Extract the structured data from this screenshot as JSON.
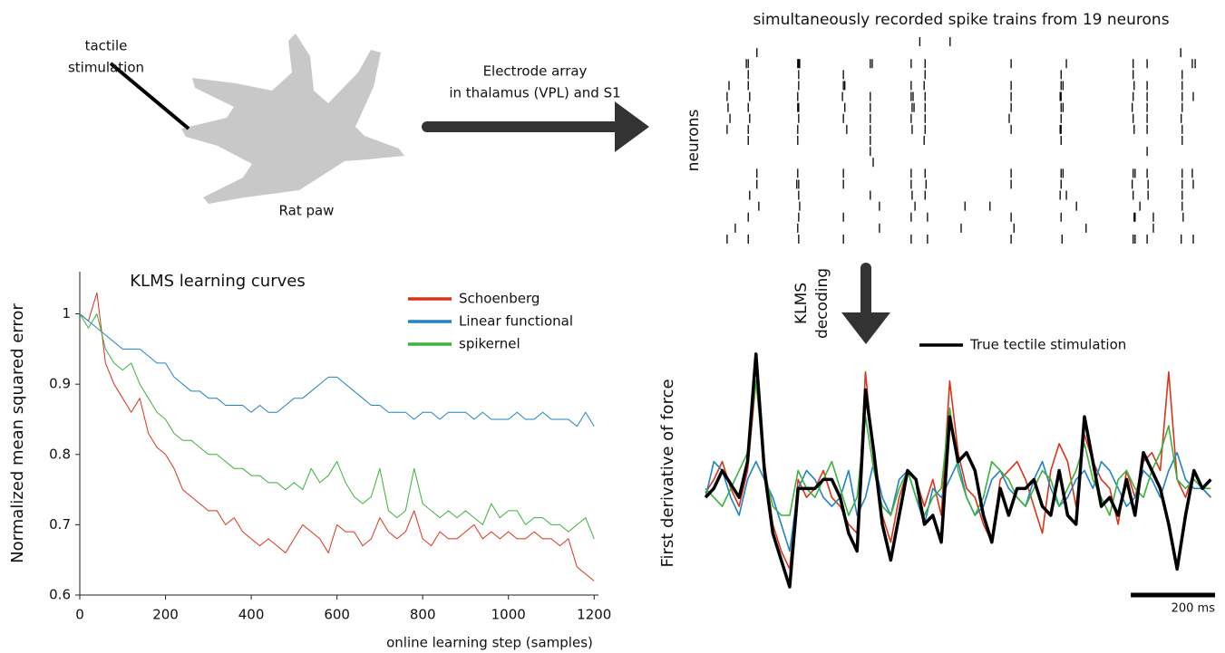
{
  "tactile_stimulation": [
    "tactile",
    "stimulation"
  ],
  "paw_label": "Rat paw",
  "electrode_label": [
    "Electrode array",
    "in thalamus (VPL) and S1"
  ],
  "decoding_label": [
    "KLMS",
    "decoding"
  ],
  "chart_data": [
    {
      "type": "raster",
      "title": "simultaneously recorded spike trains from 19 neurons",
      "ylabel": "neurons",
      "xlim": [
        0,
        1000
      ],
      "color": "#000000",
      "spike_times": [
        [
          414,
          477
        ],
        [
          75,
          957
        ],
        [
          53,
          57,
          160,
          162,
          164,
          311,
          315,
          396,
          425,
          604,
          719,
          858,
          887,
          981,
          987
        ],
        [
          57,
          162,
          255,
          425,
          708,
          858,
          960
        ],
        [
          17,
          57,
          162,
          255,
          258,
          396,
          423,
          604,
          708,
          712,
          860,
          887,
          960
        ],
        [
          13,
          60,
          160,
          253,
          311,
          396,
          400,
          425,
          604,
          706,
          708,
          858,
          887,
          960,
          983
        ],
        [
          15,
          57,
          160,
          162,
          258,
          311,
          398,
          402,
          425,
          604,
          708,
          712,
          856,
          887,
          960
        ],
        [
          19,
          60,
          162,
          255,
          311,
          396,
          425,
          600,
          708,
          858,
          887,
          958
        ],
        [
          13,
          57,
          160,
          262,
          311,
          398,
          425,
          604,
          706,
          708,
          860,
          887,
          960
        ],
        [
          57,
          160,
          311,
          423,
          708,
          960
        ],
        [
          311,
          887
        ],
        [
          317
        ],
        [
          75,
          160,
          255,
          396,
          425,
          604,
          708,
          712,
          858,
          862,
          887,
          960,
          981
        ],
        [
          75,
          158,
          162,
          255,
          396,
          427,
          604,
          708,
          856,
          889,
          960,
          983
        ],
        [
          60,
          162,
          311,
          398,
          425,
          706,
          719,
          858,
          889,
          960
        ],
        [
          79,
          164,
          330,
          404,
          508,
          560,
          740,
          872,
          960
        ],
        [
          57,
          162,
          255,
          396,
          430,
          604,
          708,
          860,
          862,
          900,
          962
        ],
        [
          30,
          160,
          330,
          500,
          610,
          760,
          900
        ],
        [
          13,
          57,
          162,
          255,
          396,
          430,
          604,
          710,
          858,
          862,
          887,
          958,
          983
        ]
      ]
    },
    {
      "type": "line",
      "title": "KLMS learning curves",
      "xlabel": "online learning step (samples)",
      "ylabel": "Normalized mean squared error",
      "axes": true,
      "legend": "upper right",
      "xlim": [
        0,
        1210
      ],
      "ylim": [
        0.6,
        1.06
      ],
      "xticks": [
        0,
        200,
        400,
        600,
        800,
        1000,
        1200
      ],
      "yticks": [
        0.6,
        0.7,
        0.8,
        0.9,
        1
      ],
      "x": [
        0,
        20,
        40,
        60,
        80,
        100,
        120,
        140,
        160,
        180,
        200,
        220,
        240,
        260,
        280,
        300,
        320,
        340,
        360,
        380,
        400,
        420,
        440,
        460,
        480,
        500,
        520,
        540,
        560,
        580,
        600,
        620,
        640,
        660,
        680,
        700,
        720,
        740,
        760,
        780,
        800,
        820,
        840,
        860,
        880,
        900,
        920,
        940,
        960,
        980,
        1000,
        1020,
        1040,
        1060,
        1080,
        1100,
        1120,
        1140,
        1160,
        1180,
        1200
      ],
      "series": [
        {
          "name": "Schoenberg",
          "color": "#d9341a",
          "width": 1,
          "values": [
            1.0,
            0.99,
            1.03,
            0.93,
            0.9,
            0.88,
            0.86,
            0.88,
            0.83,
            0.81,
            0.8,
            0.78,
            0.75,
            0.74,
            0.73,
            0.72,
            0.72,
            0.7,
            0.71,
            0.69,
            0.68,
            0.67,
            0.68,
            0.67,
            0.66,
            0.68,
            0.7,
            0.69,
            0.68,
            0.66,
            0.7,
            0.69,
            0.69,
            0.67,
            0.68,
            0.71,
            0.69,
            0.68,
            0.69,
            0.72,
            0.68,
            0.67,
            0.69,
            0.68,
            0.68,
            0.69,
            0.7,
            0.68,
            0.69,
            0.68,
            0.69,
            0.68,
            0.68,
            0.69,
            0.68,
            0.68,
            0.67,
            0.68,
            0.64,
            0.63,
            0.62
          ]
        },
        {
          "name": "Linear functional",
          "color": "#1f83c6",
          "width": 1,
          "values": [
            1.0,
            0.99,
            0.98,
            0.97,
            0.96,
            0.95,
            0.95,
            0.95,
            0.94,
            0.93,
            0.93,
            0.91,
            0.9,
            0.89,
            0.89,
            0.88,
            0.88,
            0.87,
            0.87,
            0.87,
            0.86,
            0.87,
            0.86,
            0.86,
            0.87,
            0.88,
            0.88,
            0.89,
            0.9,
            0.91,
            0.91,
            0.9,
            0.89,
            0.88,
            0.87,
            0.87,
            0.86,
            0.86,
            0.86,
            0.85,
            0.86,
            0.86,
            0.85,
            0.86,
            0.86,
            0.86,
            0.85,
            0.86,
            0.85,
            0.85,
            0.85,
            0.86,
            0.85,
            0.85,
            0.86,
            0.85,
            0.85,
            0.85,
            0.84,
            0.86,
            0.84
          ]
        },
        {
          "name": "spikernel",
          "color": "#3bb23b",
          "width": 1,
          "values": [
            1.0,
            0.98,
            1.0,
            0.95,
            0.93,
            0.92,
            0.93,
            0.9,
            0.88,
            0.86,
            0.85,
            0.83,
            0.82,
            0.82,
            0.81,
            0.8,
            0.8,
            0.79,
            0.78,
            0.78,
            0.77,
            0.77,
            0.76,
            0.76,
            0.75,
            0.76,
            0.75,
            0.78,
            0.76,
            0.77,
            0.79,
            0.76,
            0.74,
            0.73,
            0.74,
            0.78,
            0.72,
            0.71,
            0.72,
            0.78,
            0.73,
            0.72,
            0.71,
            0.72,
            0.71,
            0.72,
            0.71,
            0.7,
            0.73,
            0.71,
            0.72,
            0.72,
            0.7,
            0.71,
            0.71,
            0.7,
            0.7,
            0.69,
            0.7,
            0.71,
            0.68
          ]
        }
      ]
    },
    {
      "type": "line",
      "ylabel": "First derivative of force",
      "axes": false,
      "legend": "upper center",
      "xlim": [
        0,
        1210
      ],
      "ylim": [
        -1.12,
        1.66
      ],
      "scale_bar": {
        "value": 200,
        "label": "200 ms"
      },
      "x": [
        0,
        20,
        40,
        60,
        80,
        100,
        120,
        140,
        160,
        180,
        200,
        220,
        240,
        260,
        280,
        300,
        320,
        340,
        360,
        380,
        400,
        420,
        440,
        460,
        480,
        500,
        520,
        540,
        560,
        580,
        600,
        620,
        640,
        660,
        680,
        700,
        720,
        740,
        760,
        780,
        800,
        820,
        840,
        860,
        880,
        900,
        920,
        940,
        960,
        980,
        1000,
        1020,
        1040,
        1060,
        1080,
        1100,
        1120,
        1140,
        1160,
        1180,
        1200
      ],
      "series": [
        {
          "color": "#d9341a",
          "width": 1.6,
          "values": [
            0.05,
            0.2,
            0.4,
            0.1,
            -0.1,
            0.3,
            1.3,
            0.4,
            -0.3,
            -0.6,
            -0.8,
            0.2,
            0.0,
            0.1,
            0.3,
            0.0,
            -0.1,
            -0.3,
            -0.4,
            1.4,
            0.4,
            -0.2,
            -0.5,
            0.0,
            0.3,
            0.2,
            -0.1,
            0.2,
            -0.2,
            1.3,
            0.5,
            0.1,
            0.0,
            -0.3,
            -0.5,
            0.2,
            0.3,
            0.4,
            0.2,
            -0.1,
            -0.4,
            0.3,
            0.6,
            0.4,
            -0.1,
            0.7,
            0.4,
            0.2,
            0.1,
            -0.3,
            0.3,
            0.0,
            0.4,
            0.5,
            0.3,
            1.4,
            0.2,
            0.0,
            0.3,
            0.1,
            0.0
          ]
        },
        {
          "color": "#1f83c6",
          "width": 1.6,
          "values": [
            0.0,
            0.4,
            0.3,
            0.0,
            -0.2,
            0.2,
            0.4,
            0.2,
            0.0,
            -0.3,
            -0.6,
            0.1,
            0.3,
            0.2,
            0.0,
            -0.1,
            0.0,
            0.3,
            -0.2,
            0.0,
            0.4,
            0.0,
            -0.2,
            0.2,
            0.3,
            0.0,
            -0.3,
            0.1,
            0.0,
            0.2,
            0.4,
            0.0,
            -0.2,
            -0.1,
            0.2,
            0.3,
            0.1,
            0.0,
            -0.1,
            0.2,
            0.4,
            0.1,
            -0.1,
            0.0,
            0.2,
            0.3,
            0.1,
            0.4,
            0.3,
            0.1,
            -0.1,
            0.0,
            0.3,
            0.2,
            0.0,
            0.3,
            0.5,
            0.2,
            0.1,
            0.1,
            0.0
          ]
        },
        {
          "color": "#3bb23b",
          "width": 1.6,
          "values": [
            0.1,
            0.0,
            -0.1,
            0.1,
            0.3,
            0.5,
            1.3,
            0.3,
            -0.1,
            -0.2,
            -0.2,
            0.3,
            0.1,
            0.0,
            0.2,
            0.4,
            0.1,
            -0.2,
            0.0,
            0.9,
            0.3,
            -0.1,
            -0.2,
            0.1,
            0.3,
            0.0,
            -0.2,
            0.0,
            0.1,
            1.0,
            0.3,
            0.0,
            -0.2,
            0.0,
            0.4,
            0.3,
            0.2,
            0.0,
            -0.1,
            0.1,
            0.3,
            0.2,
            -0.1,
            0.1,
            0.3,
            0.6,
            0.2,
            0.0,
            -0.2,
            0.2,
            0.3,
            0.1,
            0.0,
            0.3,
            0.5,
            0.8,
            0.2,
            0.1,
            0.2,
            0.1,
            0.1
          ]
        },
        {
          "name": "True tectile stimulation",
          "color": "#000000",
          "width": 3.5,
          "values": [
            0,
            0.1,
            0.3,
            0.15,
            0,
            0.4,
            1.6,
            0.3,
            -0.4,
            -0.7,
            -1.0,
            0.1,
            0.1,
            0.1,
            0.2,
            0.2,
            0.0,
            -0.4,
            -0.6,
            1.2,
            0.5,
            -0.3,
            -0.7,
            -0.2,
            0.3,
            0.2,
            -0.3,
            -0.2,
            -0.5,
            0.9,
            0.4,
            0.5,
            0.3,
            -0.2,
            -0.5,
            0.1,
            -0.2,
            0.1,
            0.1,
            0.2,
            -0.1,
            -0.2,
            0.3,
            -0.2,
            -0.3,
            0.9,
            0.4,
            -0.1,
            0.0,
            -0.2,
            0.2,
            -0.2,
            0.5,
            0.3,
            0.1,
            -0.3,
            -0.8,
            -0.2,
            0.3,
            0.1,
            0.2
          ]
        }
      ]
    }
  ]
}
